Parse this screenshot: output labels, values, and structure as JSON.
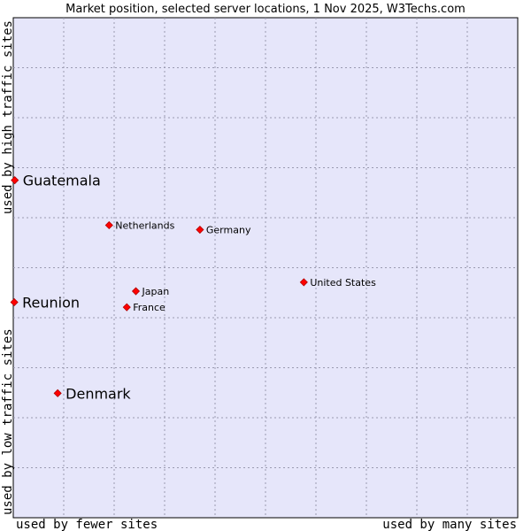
{
  "chart_data": {
    "type": "scatter",
    "title": "Market position, selected server locations, 1 Nov 2025, W3Techs.com",
    "xlabel_left": "used by fewer sites",
    "xlabel_right": "used by many sites",
    "ylabel_bottom": "used by low traffic sites",
    "ylabel_top": "used by high traffic sites",
    "xlim": [
      0,
      10
    ],
    "ylim": [
      0,
      10
    ],
    "grid": true,
    "marker_color": "#ff0000",
    "background_color": "#e6e6fa",
    "points": [
      {
        "name": "Guatemala",
        "x": 0.03,
        "y": 6.75,
        "emphasis": true
      },
      {
        "name": "Netherlands",
        "x": 1.9,
        "y": 5.85,
        "emphasis": false
      },
      {
        "name": "Germany",
        "x": 3.7,
        "y": 5.76,
        "emphasis": false
      },
      {
        "name": "United States",
        "x": 5.76,
        "y": 4.71,
        "emphasis": false
      },
      {
        "name": "Japan",
        "x": 2.43,
        "y": 4.53,
        "emphasis": false
      },
      {
        "name": "France",
        "x": 2.25,
        "y": 4.21,
        "emphasis": false
      },
      {
        "name": "Reunion",
        "x": 0.02,
        "y": 4.31,
        "emphasis": true
      },
      {
        "name": "Denmark",
        "x": 0.88,
        "y": 2.49,
        "emphasis": true
      }
    ]
  }
}
